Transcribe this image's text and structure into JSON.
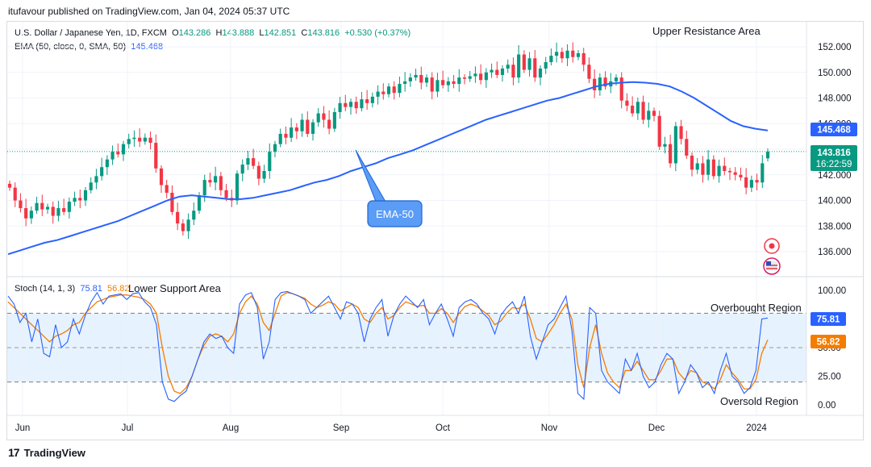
{
  "header": {
    "published": "itufavour published on TradingView.com, Jan 04, 2024 05:37 UTC"
  },
  "legend": {
    "symbol": "U.S. Dollar / Japanese Yen, 1D, FXCM",
    "o_label": "O",
    "o": "143.286",
    "h_label": "H",
    "h": "143.888",
    "l_label": "L",
    "l": "142.851",
    "c_label": "C",
    "c": "143.816",
    "change": "+0.530 (+0.37%)",
    "ema_label": "EMA (50, close, 0, SMA, 50)",
    "ema_value": "145.468",
    "stoch_label": "Stoch (14, 1, 3)",
    "stoch_k": "75.81",
    "stoch_d": "56.82"
  },
  "annotations": {
    "upper_resistance": "Upper Resistance Area",
    "lower_support": "Lower Support Area",
    "ema_callout": "EMA-50",
    "overbought": "Overbought Region",
    "oversold": "Oversold Region"
  },
  "price_badges": {
    "ema": "145.468",
    "close": "143.816",
    "countdown": "16:22:59"
  },
  "stoch_badges": {
    "k": "75.81",
    "d": "56.82"
  },
  "colors": {
    "up": "#089981",
    "down": "#f23645",
    "ema": "#2962ff",
    "stoch_k": "#2962ff",
    "stoch_d": "#f57c00",
    "band_fill": "#e6f2fd"
  },
  "footer": {
    "brand": "TradingView"
  },
  "chart_data": [
    {
      "type": "candlestick",
      "ylim": [
        135,
        153
      ],
      "y_ticks": [
        "152.000",
        "150.000",
        "148.000",
        "146.000",
        "144.000",
        "142.000",
        "140.000",
        "138.000",
        "136.000"
      ],
      "x_ticks": [
        "Jun",
        "Jul",
        "Aug",
        "Sep",
        "Oct",
        "Nov",
        "Dec",
        "2024"
      ],
      "closes": [
        141.0,
        140.0,
        139.4,
        138.6,
        139.2,
        139.8,
        139.3,
        139.5,
        138.8,
        139.4,
        139.1,
        139.9,
        140.2,
        140.0,
        140.8,
        141.4,
        141.9,
        142.6,
        143.2,
        143.8,
        143.6,
        144.4,
        144.8,
        144.9,
        144.6,
        144.9,
        144.5,
        142.5,
        141.2,
        140.6,
        139.1,
        138.2,
        137.6,
        138.5,
        139.2,
        140.4,
        141.6,
        141.4,
        141.9,
        140.8,
        140.2,
        140.0,
        142.1,
        142.8,
        143.3,
        142.7,
        141.7,
        142.3,
        143.8,
        144.4,
        145.2,
        144.9,
        145.7,
        145.4,
        146.3,
        145.2,
        146.1,
        146.8,
        146.3,
        145.6,
        146.9,
        147.6,
        147.3,
        147.7,
        147.2,
        147.9,
        147.6,
        148.1,
        148.5,
        148.3,
        148.9,
        148.4,
        149.1,
        149.3,
        149.6,
        149.8,
        149.2,
        149.6,
        148.5,
        149.4,
        149.0,
        149.3,
        149.1,
        149.6,
        149.5,
        149.7,
        149.9,
        149.4,
        150.0,
        150.2,
        149.8,
        150.3,
        150.6,
        149.6,
        151.4,
        150.2,
        151.1,
        149.6,
        150.3,
        150.8,
        151.3,
        151.6,
        151.1,
        151.7,
        151.2,
        151.5,
        150.6,
        149.5,
        148.6,
        149.6,
        148.9,
        149.3,
        149.6,
        147.8,
        147.4,
        146.8,
        147.7,
        146.3,
        147.0,
        146.6,
        144.2,
        144.4,
        142.9,
        145.8,
        144.8,
        143.5,
        142.4,
        142.9,
        142.0,
        143.2,
        141.9,
        142.7,
        142.3,
        142.2,
        142.0,
        141.8,
        141.0,
        141.6,
        141.4,
        142.9,
        143.816
      ],
      "ema50": [
        135.8,
        136.1,
        136.4,
        136.7,
        136.9,
        137.2,
        137.5,
        137.8,
        138.1,
        138.4,
        138.8,
        139.2,
        139.6,
        140.0,
        140.3,
        140.4,
        140.3,
        140.2,
        140.1,
        140.1,
        140.2,
        140.4,
        140.6,
        140.8,
        141.1,
        141.4,
        141.6,
        141.9,
        142.3,
        142.6,
        142.9,
        143.3,
        143.6,
        143.9,
        144.3,
        144.7,
        145.1,
        145.5,
        145.9,
        146.3,
        146.6,
        146.9,
        147.2,
        147.5,
        147.8,
        148.0,
        148.3,
        148.6,
        148.9,
        149.1,
        149.2,
        149.25,
        149.2,
        149.1,
        148.9,
        148.5,
        148.0,
        147.4,
        146.8,
        146.2,
        145.8,
        145.6,
        145.468
      ],
      "last_close": 143.816,
      "ema_last": 145.468
    },
    {
      "type": "line",
      "name": "Stoch (14, 1, 3)",
      "ylim": [
        0,
        100
      ],
      "y_ticks": [
        "100.00",
        "75.00",
        "50.00",
        "25.00",
        "0.00"
      ],
      "bands": {
        "upper": 80,
        "middle": 50,
        "lower": 20
      },
      "series": [
        {
          "name": "%K",
          "values": [
            95,
            88,
            72,
            80,
            55,
            75,
            45,
            42,
            70,
            50,
            55,
            75,
            62,
            78,
            90,
            98,
            88,
            95,
            96,
            97,
            92,
            97,
            98,
            90,
            85,
            70,
            20,
            5,
            3,
            8,
            12,
            25,
            40,
            55,
            62,
            58,
            60,
            50,
            45,
            88,
            96,
            98,
            85,
            40,
            55,
            92,
            98,
            99,
            97,
            95,
            92,
            80,
            85,
            90,
            95,
            85,
            75,
            90,
            88,
            80,
            55,
            75,
            85,
            92,
            60,
            78,
            88,
            95,
            90,
            85,
            92,
            70,
            80,
            88,
            75,
            60,
            85,
            90,
            92,
            88,
            80,
            75,
            62,
            78,
            85,
            90,
            80,
            95,
            60,
            40,
            55,
            70,
            75,
            85,
            95,
            65,
            10,
            5,
            85,
            80,
            30,
            20,
            15,
            10,
            40,
            30,
            45,
            25,
            15,
            20,
            35,
            45,
            40,
            10,
            20,
            35,
            28,
            15,
            20,
            10,
            30,
            45,
            25,
            20,
            10,
            15,
            30,
            75,
            75.81
          ]
        },
        {
          "name": "%D",
          "values": [
            90,
            85,
            80,
            75,
            70,
            65,
            60,
            55,
            60,
            62,
            65,
            70,
            72,
            80,
            85,
            90,
            92,
            94,
            95,
            96,
            96,
            95,
            94,
            92,
            88,
            80,
            50,
            25,
            12,
            10,
            15,
            25,
            40,
            52,
            60,
            62,
            60,
            55,
            62,
            80,
            90,
            95,
            88,
            72,
            65,
            80,
            95,
            98,
            97,
            95,
            93,
            88,
            85,
            87,
            90,
            88,
            82,
            85,
            88,
            85,
            75,
            72,
            80,
            85,
            75,
            78,
            85,
            90,
            88,
            86,
            87,
            80,
            80,
            84,
            80,
            72,
            80,
            86,
            88,
            86,
            82,
            78,
            70,
            73,
            80,
            85,
            84,
            88,
            75,
            58,
            55,
            62,
            70,
            80,
            88,
            75,
            35,
            15,
            50,
            70,
            45,
            28,
            20,
            15,
            30,
            30,
            38,
            30,
            22,
            22,
            30,
            40,
            40,
            28,
            22,
            30,
            28,
            20,
            18,
            14,
            22,
            35,
            28,
            22,
            14,
            14,
            22,
            45,
            56.82
          ]
        }
      ]
    }
  ]
}
